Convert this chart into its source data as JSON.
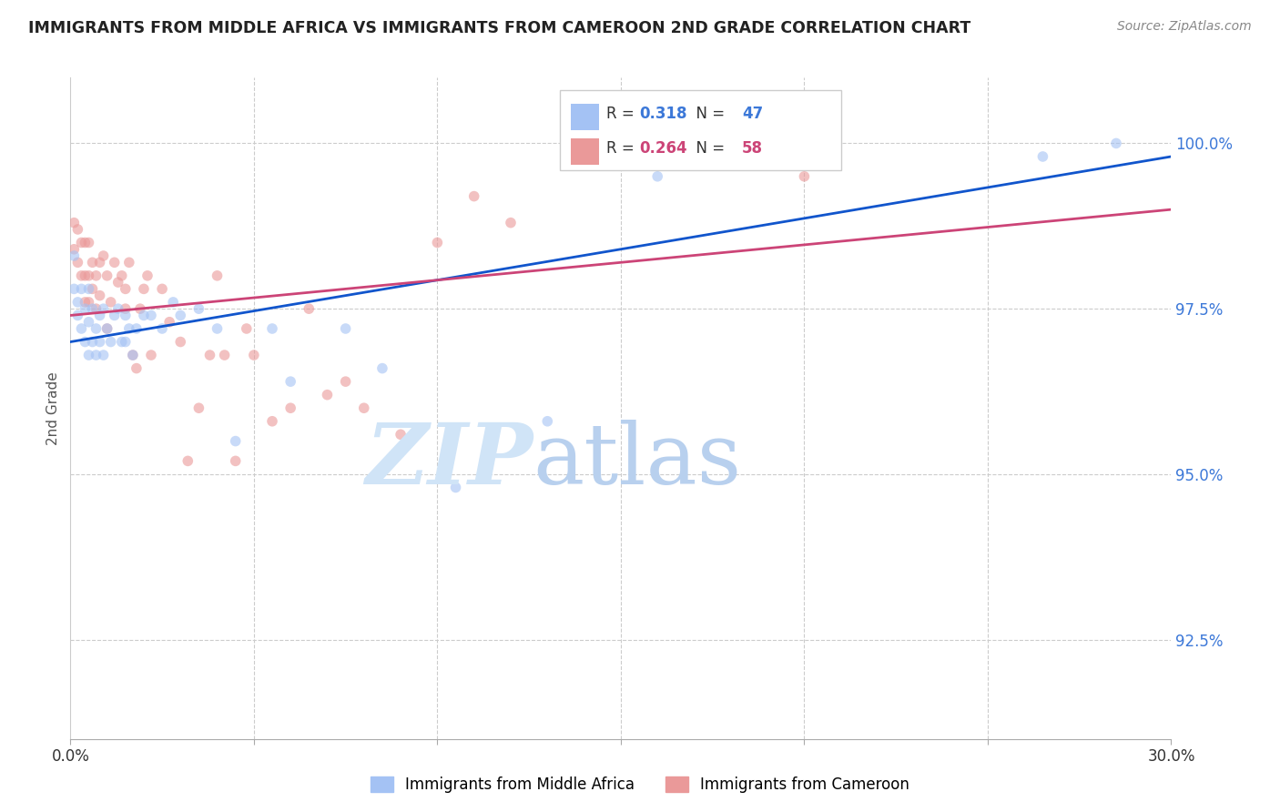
{
  "title": "IMMIGRANTS FROM MIDDLE AFRICA VS IMMIGRANTS FROM CAMEROON 2ND GRADE CORRELATION CHART",
  "source": "Source: ZipAtlas.com",
  "ylabel": "2nd Grade",
  "ytick_labels": [
    "92.5%",
    "95.0%",
    "97.5%",
    "100.0%"
  ],
  "ytick_values": [
    0.925,
    0.95,
    0.975,
    1.0
  ],
  "xlim": [
    0.0,
    0.3
  ],
  "ylim": [
    0.91,
    1.01
  ],
  "blue_label": "Immigrants from Middle Africa",
  "pink_label": "Immigrants from Cameroon",
  "blue_R": "0.318",
  "blue_N": "47",
  "pink_R": "0.264",
  "pink_N": "58",
  "blue_color": "#a4c2f4",
  "pink_color": "#ea9999",
  "blue_line_color": "#1155cc",
  "pink_line_color": "#cc4477",
  "scatter_alpha": 0.6,
  "marker_size": 70,
  "blue_scatter_x": [
    0.001,
    0.001,
    0.002,
    0.002,
    0.003,
    0.003,
    0.004,
    0.004,
    0.005,
    0.005,
    0.005,
    0.006,
    0.006,
    0.007,
    0.007,
    0.008,
    0.008,
    0.009,
    0.009,
    0.01,
    0.011,
    0.012,
    0.013,
    0.014,
    0.015,
    0.015,
    0.016,
    0.017,
    0.018,
    0.02,
    0.022,
    0.025,
    0.028,
    0.03,
    0.035,
    0.04,
    0.045,
    0.055,
    0.06,
    0.075,
    0.085,
    0.105,
    0.115,
    0.13,
    0.16,
    0.265,
    0.285
  ],
  "blue_scatter_y": [
    0.983,
    0.978,
    0.976,
    0.974,
    0.978,
    0.972,
    0.975,
    0.97,
    0.978,
    0.973,
    0.968,
    0.975,
    0.97,
    0.972,
    0.968,
    0.974,
    0.97,
    0.975,
    0.968,
    0.972,
    0.97,
    0.974,
    0.975,
    0.97,
    0.974,
    0.97,
    0.972,
    0.968,
    0.972,
    0.974,
    0.974,
    0.972,
    0.976,
    0.974,
    0.975,
    0.972,
    0.955,
    0.972,
    0.964,
    0.972,
    0.966,
    0.948,
    0.956,
    0.958,
    0.995,
    0.998,
    1.0
  ],
  "pink_scatter_x": [
    0.001,
    0.001,
    0.002,
    0.002,
    0.003,
    0.003,
    0.004,
    0.004,
    0.004,
    0.005,
    0.005,
    0.005,
    0.006,
    0.006,
    0.007,
    0.007,
    0.008,
    0.008,
    0.009,
    0.01,
    0.01,
    0.011,
    0.012,
    0.013,
    0.014,
    0.015,
    0.015,
    0.016,
    0.017,
    0.018,
    0.019,
    0.02,
    0.021,
    0.022,
    0.025,
    0.027,
    0.03,
    0.032,
    0.035,
    0.038,
    0.04,
    0.042,
    0.045,
    0.048,
    0.05,
    0.055,
    0.06,
    0.065,
    0.07,
    0.075,
    0.08,
    0.09,
    0.1,
    0.11,
    0.12,
    0.14,
    0.16,
    0.2
  ],
  "pink_scatter_y": [
    0.988,
    0.984,
    0.987,
    0.982,
    0.985,
    0.98,
    0.985,
    0.98,
    0.976,
    0.985,
    0.98,
    0.976,
    0.982,
    0.978,
    0.98,
    0.975,
    0.982,
    0.977,
    0.983,
    0.98,
    0.972,
    0.976,
    0.982,
    0.979,
    0.98,
    0.978,
    0.975,
    0.982,
    0.968,
    0.966,
    0.975,
    0.978,
    0.98,
    0.968,
    0.978,
    0.973,
    0.97,
    0.952,
    0.96,
    0.968,
    0.98,
    0.968,
    0.952,
    0.972,
    0.968,
    0.958,
    0.96,
    0.975,
    0.962,
    0.964,
    0.96,
    0.956,
    0.985,
    0.992,
    0.988,
    1.0,
    0.998,
    0.995
  ],
  "background_color": "#ffffff",
  "grid_color": "#cccccc",
  "blue_line_x": [
    0.0,
    0.3
  ],
  "blue_line_y": [
    0.97,
    0.998
  ],
  "pink_line_x": [
    0.0,
    0.3
  ],
  "pink_line_y": [
    0.974,
    0.99
  ]
}
